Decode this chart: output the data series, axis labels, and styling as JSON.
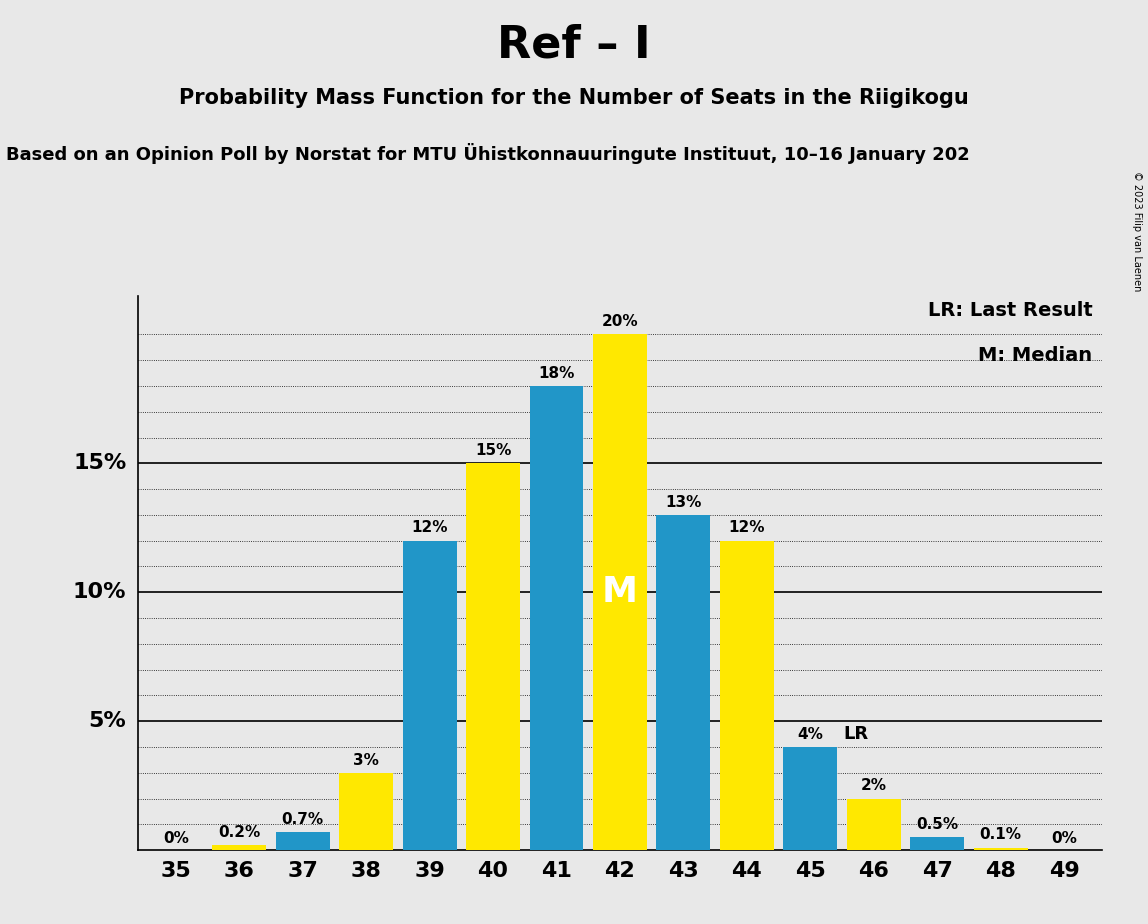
{
  "title": "Ref – I",
  "subtitle": "Probability Mass Function for the Number of Seats in the Riigikogu",
  "source_line": "Based on an Opinion Poll by Norstat for MTU Ühistkonnauuringute Instituut, 10–16 January 202",
  "copyright": "© 2023 Filip van Laenen",
  "seats": [
    35,
    36,
    37,
    38,
    39,
    40,
    41,
    42,
    43,
    44,
    45,
    46,
    47,
    48,
    49
  ],
  "bar_colors": [
    "#2196C8",
    "#FFE800",
    "#2196C8",
    "#FFE800",
    "#2196C8",
    "#FFE800",
    "#2196C8",
    "#FFE800",
    "#2196C8",
    "#FFE800",
    "#2196C8",
    "#FFE800",
    "#2196C8",
    "#FFE800",
    "#2196C8"
  ],
  "bar_values": [
    0.0,
    0.2,
    0.7,
    3.0,
    12.0,
    15.0,
    18.0,
    20.0,
    13.0,
    12.0,
    4.0,
    2.0,
    0.5,
    0.1,
    0.0
  ],
  "bar_labels": [
    "0%",
    "0.2%",
    "0.7%",
    "3%",
    "12%",
    "15%",
    "18%",
    "20%",
    "13%",
    "12%",
    "4%",
    "2%",
    "0.5%",
    "0.1%",
    "0%"
  ],
  "median_idx": 7,
  "lr_idx": 10,
  "blue_color": "#2196C8",
  "yellow_color": "#FFE800",
  "background_color": "#E8E8E8",
  "ylim": [
    0,
    21.5
  ],
  "ytick_positions": [
    5,
    10,
    15
  ],
  "ytick_labels": [
    "5%",
    "10%",
    "15%"
  ],
  "legend_lr": "LR: Last Result",
  "legend_m": "M: Median",
  "note_m": "M",
  "note_lr": "LR"
}
